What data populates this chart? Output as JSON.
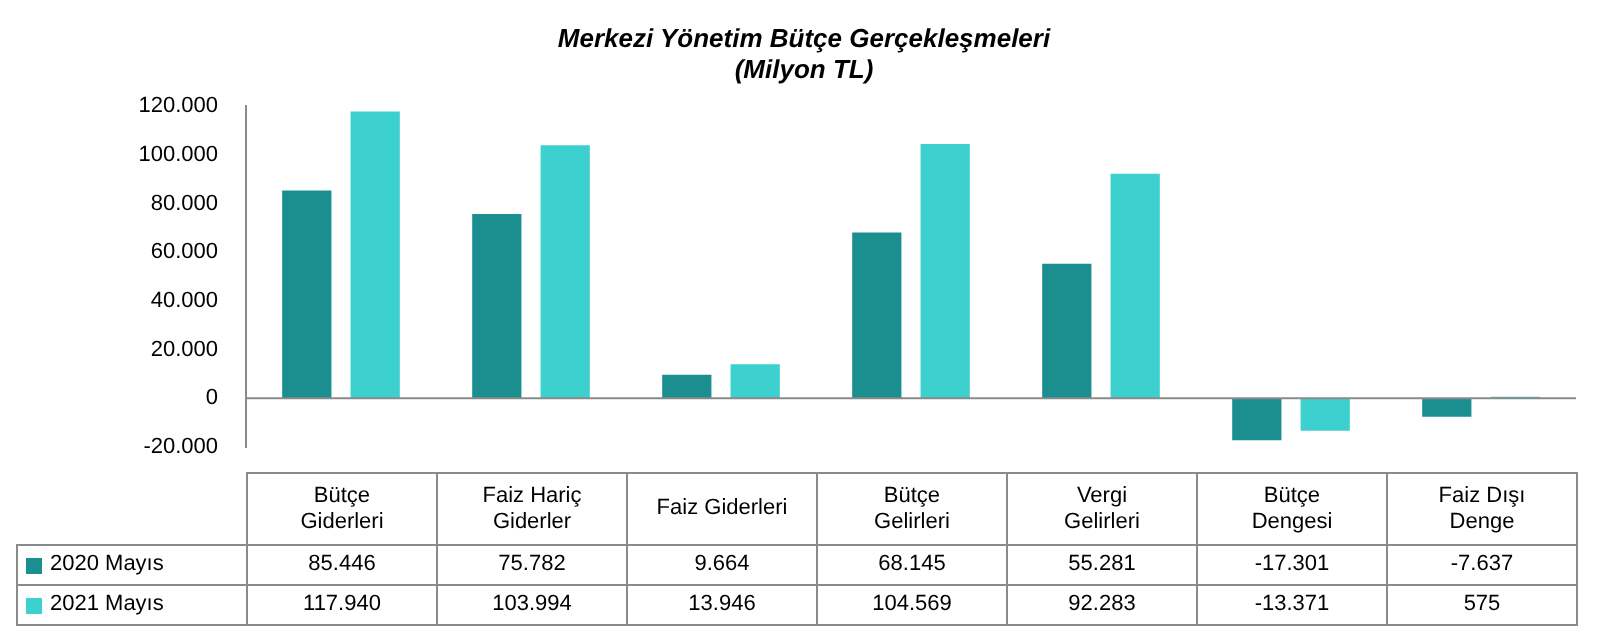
{
  "chart_data": {
    "type": "bar",
    "title": "Merkezi Yönetim Bütçe Gerçekleşmeleri",
    "subtitle": "(Milyon TL)",
    "categories": [
      "Bütçe Giderleri",
      "Faiz Hariç Giderler",
      "Faiz Giderleri",
      "Bütçe Gelirleri",
      "Vergi Gelirleri",
      "Bütçe Dengesi",
      "Faiz Dışı Denge"
    ],
    "series": [
      {
        "name": "2020 Mayıs",
        "color": "#1b8f8f",
        "values": [
          85446,
          75782,
          9664,
          68145,
          55281,
          -17301,
          -7637
        ],
        "value_labels": [
          "85.446",
          "75.782",
          "9.664",
          "68.145",
          "55.281",
          "-17.301",
          "-7.637"
        ]
      },
      {
        "name": "2021 Mayıs",
        "color": "#3cd0cf",
        "values": [
          117940,
          103994,
          13946,
          104569,
          92283,
          -13371,
          575
        ],
        "value_labels": [
          "117.940",
          "103.994",
          "13.946",
          "104.569",
          "92.283",
          "-13.371",
          "575"
        ]
      }
    ],
    "ylim": [
      -20000,
      120000
    ],
    "yticks": [
      {
        "value": -20000,
        "label": "-20.000"
      },
      0,
      {
        "value": 20000,
        "label": "20.000"
      },
      {
        "value": 40000,
        "label": "40.000"
      },
      {
        "value": 60000,
        "label": "60.000"
      },
      {
        "value": 80000,
        "label": "80.000"
      },
      {
        "value": 100000,
        "label": "100.000"
      },
      {
        "value": 120000,
        "label": "120.000"
      }
    ],
    "ref_lines": [
      {
        "axis": "y",
        "value": 0,
        "color": "#8a8a8a"
      }
    ],
    "legend": "bottom left"
  }
}
